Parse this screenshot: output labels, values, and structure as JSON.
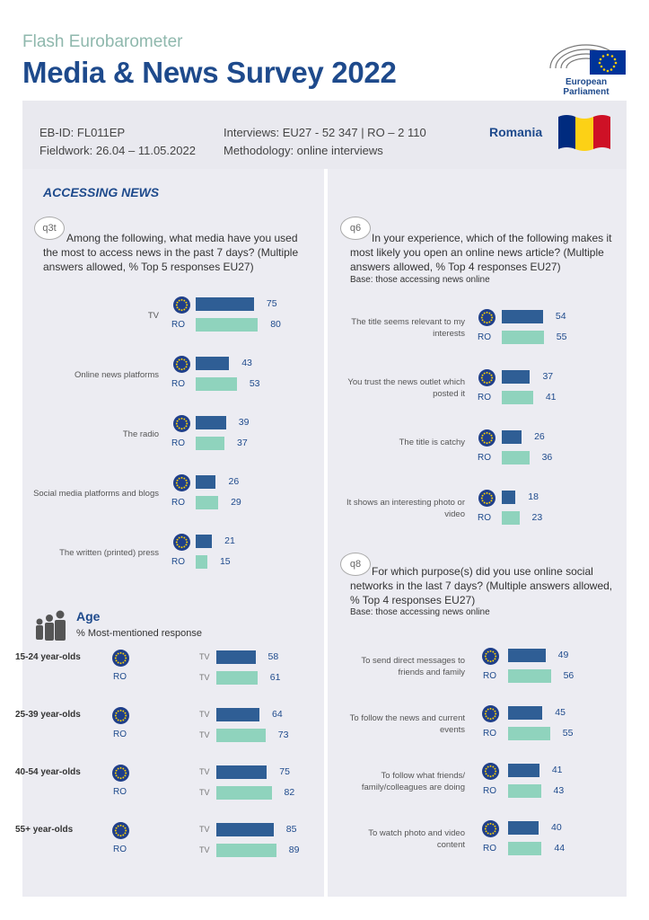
{
  "header": {
    "kicker": "Flash Eurobarometer",
    "title": "Media & News Survey 2022",
    "logo_label": "European Parliament"
  },
  "info": {
    "eb_id": "EB-ID: FL011EP",
    "fieldwork": "Fieldwork: 26.04 – 11.05.2022",
    "interviews": "Interviews: EU27 - 52 347 | RO – 2 110",
    "methodology": "Methodology: online interviews",
    "country": "Romania"
  },
  "colors": {
    "eu": "#2f5e95",
    "ro": "#8fd3bd",
    "brand": "#1e4a8c",
    "flag": [
      "#002b7f",
      "#fcd116",
      "#ce1126"
    ]
  },
  "section_title": "ACCESSING NEWS",
  "labels": {
    "ro": "RO",
    "tv": "TV"
  },
  "q3t": {
    "badge": "q3t",
    "text": "Among the following, what media have you used the most to access news in the past 7 days? (Multiple answers allowed, % Top 5 responses EU27)"
  },
  "q6": {
    "badge": "q6",
    "text": "In your experience, which of the following makes it most likely you open an online news article? (Multiple answers allowed, % Top 4 responses EU27)",
    "base": "Base: those accessing news online"
  },
  "q8": {
    "badge": "q8",
    "text": "For which purpose(s) did you use online social networks in the last 7 days? (Multiple answers allowed, % Top 4 responses EU27)",
    "base": "Base: those accessing news online"
  },
  "age": {
    "title": "Age",
    "subtitle": "% Most-mentioned response"
  },
  "chart_data": [
    {
      "type": "bar",
      "id": "q3t",
      "categories": [
        "TV",
        "Online news platforms",
        "The radio",
        "Social media platforms and blogs",
        "The written (printed) press"
      ],
      "series": [
        {
          "name": "EU27",
          "values": [
            75,
            43,
            39,
            26,
            21
          ]
        },
        {
          "name": "RO",
          "values": [
            80,
            53,
            37,
            29,
            15
          ]
        }
      ]
    },
    {
      "type": "bar",
      "id": "age",
      "categories": [
        "15-24 year-olds",
        "25-39 year-olds",
        "40-54 year-olds",
        "55+ year-olds"
      ],
      "series": [
        {
          "name": "EU27",
          "values": [
            58,
            64,
            75,
            85
          ]
        },
        {
          "name": "RO",
          "values": [
            61,
            73,
            82,
            89
          ]
        }
      ]
    },
    {
      "type": "bar",
      "id": "q6",
      "categories": [
        "The title seems relevant to my interests",
        "You trust the news outlet which posted it",
        "The title is catchy",
        "It shows an interesting photo or video"
      ],
      "series": [
        {
          "name": "EU27",
          "values": [
            54,
            37,
            26,
            18
          ]
        },
        {
          "name": "RO",
          "values": [
            55,
            41,
            36,
            23
          ]
        }
      ]
    },
    {
      "type": "bar",
      "id": "q8",
      "categories": [
        "To send direct messages to friends and family",
        "To follow the news and current events",
        "To follow what friends/ family/colleagues are doing",
        "To watch photo and video content"
      ],
      "series": [
        {
          "name": "EU27",
          "values": [
            49,
            45,
            41,
            40
          ]
        },
        {
          "name": "RO",
          "values": [
            56,
            55,
            43,
            44
          ]
        }
      ]
    }
  ]
}
